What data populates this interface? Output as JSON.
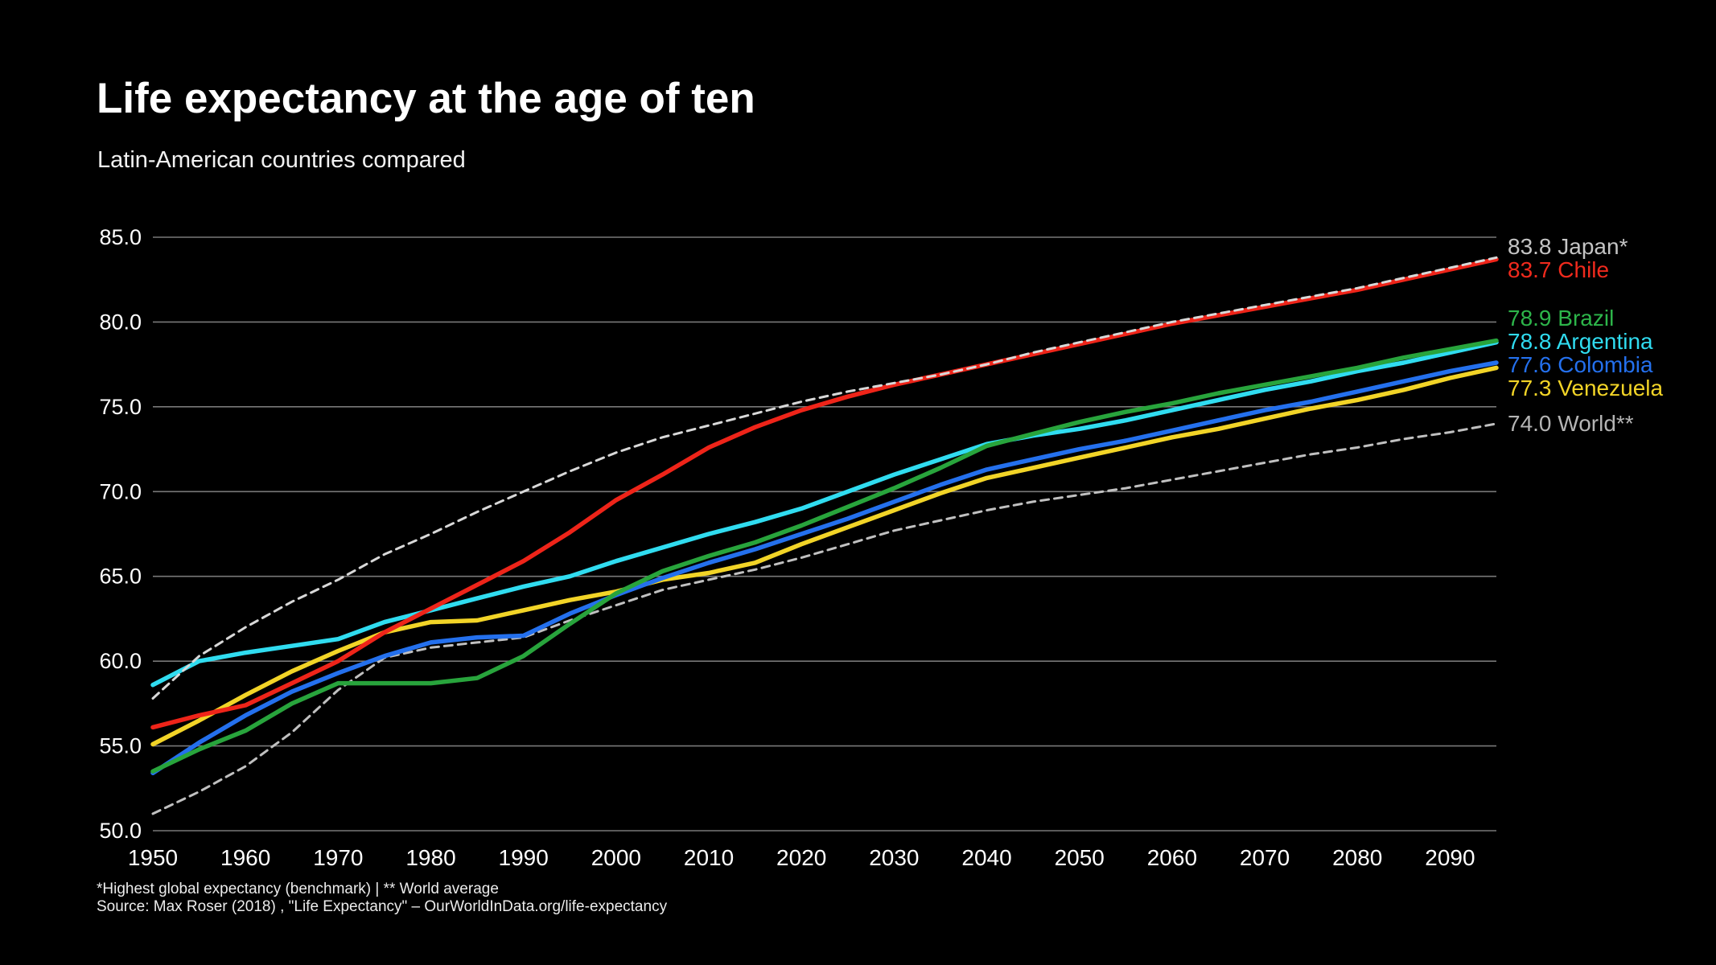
{
  "page": {
    "title": "Life expectancy at the age of ten",
    "subtitle": "Latin-American countries compared",
    "footnote": "*Highest global expectancy (benchmark) | ** World average",
    "source": "Source: Max Roser (2018) , \"Life Expectancy\" – OurWorldInData.org/life-expectancy",
    "background_color": "#000000",
    "text_color": "#ffffff",
    "gridline_color": "#787878"
  },
  "chart_data": {
    "type": "line",
    "title": "Life expectancy at the age of ten",
    "subtitle": "Latin-American countries compared",
    "xlabel": "",
    "ylabel": "",
    "xlim": [
      1950,
      2095
    ],
    "ylim": [
      50,
      85
    ],
    "grid": true,
    "legend_position": "right-edge-labels",
    "x_ticks": [
      1950,
      1960,
      1970,
      1980,
      1990,
      2000,
      2010,
      2020,
      2030,
      2040,
      2050,
      2060,
      2070,
      2080,
      2090
    ],
    "y_ticks": [
      50,
      55,
      60,
      65,
      70,
      75,
      80,
      85
    ],
    "y_tick_format": "one-decimal",
    "x": [
      1950,
      1955,
      1960,
      1965,
      1970,
      1975,
      1980,
      1985,
      1990,
      1995,
      2000,
      2005,
      2010,
      2015,
      2020,
      2025,
      2030,
      2035,
      2040,
      2045,
      2050,
      2055,
      2060,
      2065,
      2070,
      2075,
      2080,
      2085,
      2090,
      2095
    ],
    "series": [
      {
        "name": "World",
        "end_label": "74.0 World**",
        "end_value": 74.0,
        "color": "#c0c0c0",
        "label_color": "#b4b4b4",
        "dashed": true,
        "values": [
          51.0,
          52.3,
          53.8,
          55.8,
          58.3,
          60.2,
          60.8,
          61.1,
          61.4,
          62.4,
          63.3,
          64.2,
          64.8,
          65.4,
          66.1,
          66.9,
          67.7,
          68.3,
          68.9,
          69.4,
          69.8,
          70.2,
          70.7,
          71.2,
          71.7,
          72.2,
          72.6,
          73.1,
          73.5,
          74.0
        ]
      },
      {
        "name": "Venezuela",
        "end_label": "77.3 Venezuela",
        "end_value": 77.3,
        "color": "#f2d427",
        "label_color": "#f2d427",
        "dashed": false,
        "values": [
          55.1,
          56.5,
          58.0,
          59.4,
          60.6,
          61.7,
          62.3,
          62.4,
          63.0,
          63.6,
          64.1,
          64.8,
          65.2,
          65.8,
          66.9,
          67.9,
          68.9,
          69.9,
          70.8,
          71.4,
          72.0,
          72.6,
          73.2,
          73.7,
          74.3,
          74.9,
          75.4,
          76.0,
          76.7,
          77.3
        ]
      },
      {
        "name": "Colombia",
        "end_label": "77.6 Colombia",
        "end_value": 77.6,
        "color": "#2470ed",
        "label_color": "#2470ed",
        "dashed": false,
        "values": [
          53.4,
          55.2,
          56.8,
          58.2,
          59.3,
          60.3,
          61.1,
          61.4,
          61.5,
          62.8,
          63.9,
          64.9,
          65.8,
          66.6,
          67.5,
          68.4,
          69.4,
          70.4,
          71.3,
          71.9,
          72.5,
          73.0,
          73.6,
          74.2,
          74.8,
          75.3,
          75.9,
          76.5,
          77.1,
          77.6
        ]
      },
      {
        "name": "Argentina",
        "end_label": "78.8 Argentina",
        "end_value": 78.8,
        "color": "#30dcf0",
        "label_color": "#30dcf0",
        "dashed": false,
        "values": [
          58.6,
          60.0,
          60.5,
          60.9,
          61.3,
          62.3,
          63.0,
          63.7,
          64.4,
          65.0,
          65.9,
          66.7,
          67.5,
          68.2,
          69.0,
          70.0,
          71.0,
          71.9,
          72.8,
          73.3,
          73.7,
          74.2,
          74.8,
          75.4,
          76.0,
          76.5,
          77.1,
          77.6,
          78.2,
          78.8
        ]
      },
      {
        "name": "Brazil",
        "end_label": "78.9 Brazil",
        "end_value": 78.9,
        "color": "#28a43c",
        "label_color": "#2db54a",
        "dashed": false,
        "values": [
          53.5,
          54.8,
          55.9,
          57.5,
          58.7,
          58.7,
          58.7,
          59.0,
          60.3,
          62.2,
          64.0,
          65.3,
          66.2,
          67.0,
          68.0,
          69.1,
          70.2,
          71.4,
          72.7,
          73.4,
          74.1,
          74.7,
          75.2,
          75.8,
          76.3,
          76.8,
          77.3,
          77.9,
          78.4,
          78.9
        ]
      },
      {
        "name": "Chile",
        "end_label": "83.7 Chile",
        "end_value": 83.7,
        "color": "#ee2419",
        "label_color": "#f02a1d",
        "dashed": false,
        "values": [
          56.1,
          56.8,
          57.4,
          58.7,
          60.0,
          61.7,
          63.1,
          64.5,
          65.9,
          67.6,
          69.5,
          71.0,
          72.6,
          73.8,
          74.8,
          75.6,
          76.3,
          76.9,
          77.5,
          78.1,
          78.7,
          79.3,
          79.9,
          80.4,
          80.9,
          81.4,
          81.9,
          82.5,
          83.1,
          83.7
        ]
      },
      {
        "name": "Japan",
        "end_label": "83.8 Japan*",
        "end_value": 83.8,
        "color": "#d8d8d8",
        "label_color": "#c4c4c4",
        "dashed": true,
        "values": [
          57.8,
          60.3,
          62.0,
          63.5,
          64.8,
          66.3,
          67.5,
          68.8,
          70.0,
          71.2,
          72.3,
          73.2,
          73.9,
          74.6,
          75.3,
          75.9,
          76.4,
          76.9,
          77.5,
          78.2,
          78.8,
          79.4,
          80.0,
          80.5,
          81.0,
          81.5,
          82.0,
          82.6,
          83.2,
          83.8
        ]
      }
    ]
  }
}
